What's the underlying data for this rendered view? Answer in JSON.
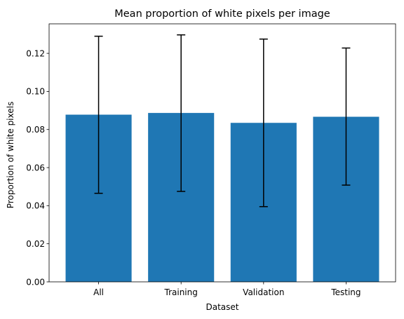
{
  "chart_data": {
    "type": "bar",
    "title": "Mean proportion of white pixels per image",
    "xlabel": "Dataset",
    "ylabel": "Proportion of white pixels",
    "categories": [
      "All",
      "Training",
      "Validation",
      "Testing"
    ],
    "values": [
      0.0878,
      0.0887,
      0.0835,
      0.0867
    ],
    "error_low": [
      0.0465,
      0.0475,
      0.0395,
      0.0508
    ],
    "error_high": [
      0.129,
      0.1297,
      0.1275,
      0.1228
    ],
    "ylim": [
      0,
      0.1355
    ],
    "yticks": [
      "0.00",
      "0.02",
      "0.04",
      "0.06",
      "0.08",
      "0.10",
      "0.12"
    ],
    "grid": false,
    "bar_color": "#1f77b4",
    "error_color": "#000000"
  }
}
